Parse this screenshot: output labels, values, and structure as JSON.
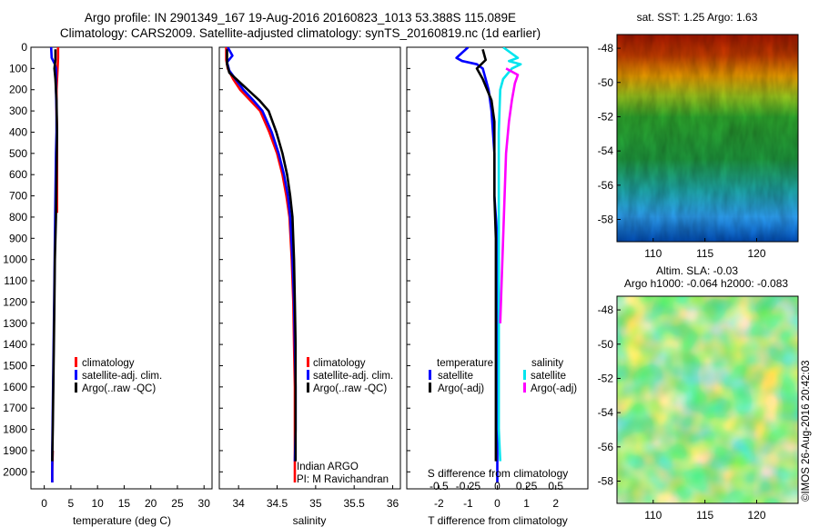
{
  "header": {
    "line1": "Argo profile: IN 2901349_167 19-Aug-2016 20160823_1013 53.388S 115.089E",
    "line2": "Climatology: CARS2009. Satellite-adjusted climatology: synTS_20160819.nc (1d earlier)"
  },
  "credit": "©IMOS 26-Aug-2016 20:42:03",
  "colors": {
    "climatology": "#ff0000",
    "satellite": "#0000ff",
    "argo": "#000000",
    "sat_salinity": "#00e5ee",
    "argo_adj_salinity": "#ff00ff"
  },
  "chart_data": [
    {
      "type": "line",
      "id": "temperature",
      "xlabel": "temperature (deg C)",
      "xlim": [
        -2.5,
        31.5
      ],
      "ylim": [
        2080,
        0
      ],
      "xticks": [
        0,
        5,
        10,
        15,
        20,
        25,
        30
      ],
      "yticks": [
        0,
        100,
        200,
        300,
        400,
        500,
        600,
        700,
        800,
        900,
        1000,
        1100,
        1200,
        1300,
        1400,
        1500,
        1600,
        1700,
        1800,
        1900,
        2000
      ],
      "legend": [
        "climatology",
        "satellite-adj. clim.",
        "Argo(..raw -QC)"
      ],
      "series": [
        {
          "name": "climatology",
          "color": "#ff0000",
          "points": [
            [
              2.6,
              0
            ],
            [
              2.6,
              50
            ],
            [
              2.5,
              100
            ],
            [
              2.4,
              150
            ],
            [
              2.3,
              200
            ],
            [
              2.3,
              300
            ],
            [
              2.4,
              400
            ],
            [
              2.4,
              500
            ],
            [
              2.4,
              600
            ],
            [
              2.4,
              780
            ]
          ]
        },
        {
          "name": "climatology",
          "color": "#ff0000",
          "points": [
            [
              1.6,
              1900
            ],
            [
              1.5,
              2000
            ],
            [
              1.5,
              2050
            ]
          ]
        },
        {
          "name": "satellite-adj. clim.",
          "color": "#0000ff",
          "points": [
            [
              1.3,
              0
            ],
            [
              1.4,
              50
            ],
            [
              2.0,
              80
            ],
            [
              2.2,
              100
            ],
            [
              2.2,
              150
            ],
            [
              2.2,
              200
            ],
            [
              2.3,
              300
            ],
            [
              2.3,
              400
            ],
            [
              2.2,
              500
            ],
            [
              2.1,
              700
            ],
            [
              2.0,
              900
            ],
            [
              1.9,
              1100
            ],
            [
              1.8,
              1300
            ],
            [
              1.7,
              1500
            ],
            [
              1.6,
              1700
            ],
            [
              1.5,
              1900
            ],
            [
              1.5,
              2050
            ]
          ]
        },
        {
          "name": "Argo(..raw -QC)",
          "color": "#000000",
          "points": [
            [
              2.1,
              10
            ],
            [
              2.1,
              60
            ],
            [
              1.9,
              100
            ],
            [
              2.1,
              150
            ],
            [
              2.3,
              250
            ],
            [
              2.4,
              400
            ],
            [
              2.3,
              600
            ],
            [
              2.2,
              800
            ],
            [
              2.0,
              1000
            ],
            [
              1.9,
              1200
            ],
            [
              1.8,
              1400
            ],
            [
              1.7,
              1600
            ],
            [
              1.6,
              1800
            ],
            [
              1.5,
              1950
            ]
          ]
        }
      ]
    },
    {
      "type": "line",
      "id": "salinity",
      "xlabel": "salinity",
      "xlim": [
        33.75,
        36.1
      ],
      "ylim": [
        2080,
        0
      ],
      "xticks": [
        34,
        34.5,
        35,
        35.5,
        36
      ],
      "legend": [
        "climatology",
        "satellite-adj. clim.",
        "Argo(..raw -QC)"
      ],
      "annotation": [
        "Indian ARGO",
        "PI: M Ravichandran"
      ],
      "series": [
        {
          "name": "climatology",
          "color": "#ff0000",
          "points": [
            [
              33.84,
              0
            ],
            [
              33.84,
              60
            ],
            [
              33.86,
              100
            ],
            [
              33.93,
              150
            ],
            [
              34.02,
              200
            ],
            [
              34.15,
              250
            ],
            [
              34.28,
              300
            ],
            [
              34.4,
              400
            ],
            [
              34.5,
              500
            ],
            [
              34.57,
              600
            ],
            [
              34.62,
              700
            ],
            [
              34.66,
              800
            ],
            [
              34.69,
              1000
            ],
            [
              34.71,
              1200
            ],
            [
              34.72,
              1400
            ],
            [
              34.73,
              1600
            ],
            [
              34.73,
              1800
            ],
            [
              34.73,
              2050
            ]
          ]
        },
        {
          "name": "satellite-adj. clim.",
          "color": "#0000ff",
          "points": [
            [
              33.86,
              0
            ],
            [
              33.92,
              40
            ],
            [
              33.85,
              70
            ],
            [
              33.88,
              110
            ],
            [
              33.96,
              150
            ],
            [
              34.06,
              200
            ],
            [
              34.19,
              250
            ],
            [
              34.31,
              300
            ],
            [
              34.43,
              400
            ],
            [
              34.52,
              500
            ],
            [
              34.59,
              600
            ],
            [
              34.64,
              700
            ],
            [
              34.67,
              800
            ],
            [
              34.7,
              1000
            ],
            [
              34.72,
              1200
            ],
            [
              34.73,
              1400
            ],
            [
              34.74,
              1600
            ],
            [
              34.74,
              1800
            ],
            [
              34.73,
              1950
            ]
          ]
        },
        {
          "name": "Argo(..raw -QC)",
          "color": "#000000",
          "points": [
            [
              33.85,
              10
            ],
            [
              33.85,
              80
            ],
            [
              33.88,
              120
            ],
            [
              33.97,
              150
            ],
            [
              34.12,
              200
            ],
            [
              34.27,
              250
            ],
            [
              34.39,
              300
            ],
            [
              34.49,
              400
            ],
            [
              34.57,
              500
            ],
            [
              34.63,
              600
            ],
            [
              34.67,
              700
            ],
            [
              34.7,
              800
            ],
            [
              34.72,
              1000
            ],
            [
              34.73,
              1200
            ],
            [
              34.74,
              1400
            ],
            [
              34.74,
              1600
            ],
            [
              34.74,
              1800
            ],
            [
              34.74,
              1950
            ]
          ]
        }
      ]
    },
    {
      "type": "line",
      "id": "difference",
      "xlabel": "T difference from climatology",
      "xlabel_top": "S difference from climatology",
      "xlim": [
        -3.1,
        3.1
      ],
      "ylim": [
        2080,
        0
      ],
      "xticks": [
        -2,
        -1,
        0,
        1,
        2
      ],
      "xtick_labels_top": [
        "-0.5",
        "-0.25",
        "0",
        "0.25",
        "0.5"
      ],
      "legend_left_title": "temperature",
      "legend_right_title": "salinity",
      "legend_left": [
        "satellite",
        "Argo(-adj)"
      ],
      "legend_right": [
        "satellite",
        "Argo(-adj)"
      ],
      "series": [
        {
          "name": "satellite",
          "color": "#0000ff",
          "points": [
            [
              -1.0,
              0
            ],
            [
              -1.4,
              50
            ],
            [
              -1.2,
              65
            ],
            [
              -0.7,
              80
            ],
            [
              -0.5,
              100
            ],
            [
              -0.4,
              150
            ],
            [
              -0.3,
              200
            ],
            [
              -0.2,
              300
            ],
            [
              -0.1,
              500
            ],
            [
              -0.1,
              700
            ],
            [
              0,
              900
            ],
            [
              0,
              1200
            ],
            [
              0,
              1500
            ],
            [
              0,
              1900
            ],
            [
              0,
              2050
            ]
          ]
        },
        {
          "name": "Argo(-adj)",
          "color": "#000000",
          "points": [
            [
              -0.5,
              10
            ],
            [
              -0.4,
              60
            ],
            [
              -0.7,
              100
            ],
            [
              -0.5,
              150
            ],
            [
              -0.2,
              250
            ],
            [
              -0.1,
              350
            ],
            [
              -0.1,
              500
            ],
            [
              -0.1,
              700
            ],
            [
              -0.05,
              900
            ],
            [
              -0.05,
              1200
            ],
            [
              -0.05,
              1500
            ],
            [
              -0.05,
              1700
            ],
            [
              -0.05,
              1950
            ]
          ]
        },
        {
          "name": "satellite",
          "color": "#00e5ee",
          "points": [
            [
              0.2,
              0
            ],
            [
              0.5,
              30
            ],
            [
              0.7,
              50
            ],
            [
              0.4,
              65
            ],
            [
              0.8,
              80
            ],
            [
              0.5,
              100
            ],
            [
              0.2,
              150
            ],
            [
              0.1,
              200
            ],
            [
              0.05,
              400
            ],
            [
              0.05,
              700
            ],
            [
              0.05,
              1000
            ],
            [
              0.05,
              1400
            ],
            [
              0.05,
              1800
            ],
            [
              0.1,
              1950
            ]
          ]
        },
        {
          "name": "Argo(-adj)",
          "color": "#ff00ff",
          "points": [
            [
              0.3,
              100
            ],
            [
              0.7,
              130
            ],
            [
              0.6,
              170
            ],
            [
              0.5,
              250
            ],
            [
              0.4,
              350
            ],
            [
              0.3,
              500
            ],
            [
              0.25,
              700
            ],
            [
              0.2,
              900
            ],
            [
              0.15,
              1100
            ],
            [
              0.1,
              1300
            ]
          ]
        }
      ]
    },
    {
      "type": "heatmap",
      "id": "sst-map",
      "title": "sat. SST: 1.25 Argo: 1.63",
      "xlim": [
        106.5,
        124
      ],
      "ylim": [
        -59.3,
        -47.2
      ],
      "xticks": [
        110,
        115,
        120
      ],
      "yticks": [
        -48,
        -50,
        -52,
        -54,
        -56,
        -58
      ]
    },
    {
      "type": "heatmap",
      "id": "sla-map",
      "title": "Altim. SLA: -0.03",
      "subtitle": "Argo h1000: -0.064 h2000: -0.083",
      "xlim": [
        106.5,
        124
      ],
      "ylim": [
        -59.3,
        -47.2
      ],
      "xticks": [
        110,
        115,
        120
      ],
      "yticks": [
        -48,
        -50,
        -52,
        -54,
        -56,
        -58
      ]
    }
  ]
}
